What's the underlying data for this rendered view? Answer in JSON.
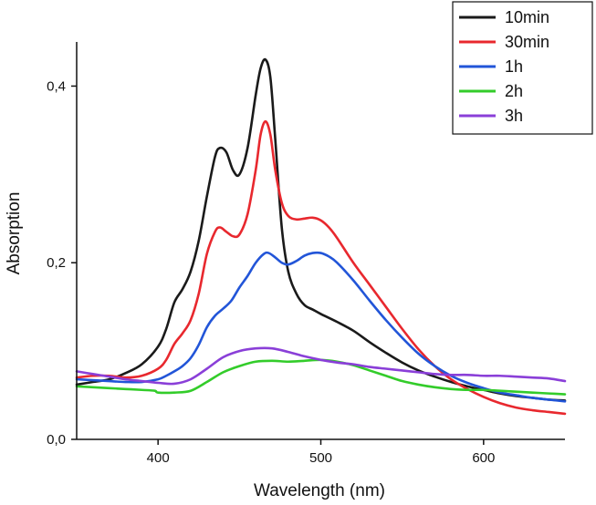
{
  "chart_data": {
    "type": "line",
    "title": "",
    "xlabel": "Wavelength (nm)",
    "ylabel": "Absorption",
    "xlim": [
      350,
      650
    ],
    "ylim": [
      0.0,
      0.45
    ],
    "x_ticks": [
      400,
      500,
      600
    ],
    "y_ticks": [
      0.0,
      0.2,
      0.4
    ],
    "x_tick_labels": [
      "400",
      "500",
      "600"
    ],
    "y_tick_labels": [
      "0,0",
      "0,2",
      "0,4"
    ],
    "grid": false,
    "legend_position": "top-right",
    "series": [
      {
        "name": "10min",
        "color": "#1a1a1a",
        "x": [
          350,
          360,
          370,
          380,
          390,
          400,
          405,
          410,
          415,
          420,
          425,
          430,
          435,
          438,
          442,
          446,
          450,
          455,
          460,
          463,
          466,
          469,
          472,
          476,
          480,
          485,
          490,
          495,
          500,
          510,
          520,
          530,
          540,
          550,
          560,
          570,
          580,
          590,
          600,
          610,
          620,
          630,
          640,
          650
        ],
        "y": [
          0.062,
          0.065,
          0.068,
          0.075,
          0.085,
          0.105,
          0.125,
          0.155,
          0.17,
          0.19,
          0.225,
          0.275,
          0.32,
          0.33,
          0.325,
          0.305,
          0.3,
          0.33,
          0.39,
          0.42,
          0.43,
          0.41,
          0.34,
          0.24,
          0.19,
          0.165,
          0.152,
          0.147,
          0.142,
          0.133,
          0.123,
          0.11,
          0.098,
          0.087,
          0.078,
          0.071,
          0.065,
          0.06,
          0.056,
          0.052,
          0.049,
          0.047,
          0.045,
          0.044
        ]
      },
      {
        "name": "30min",
        "color": "#e8282e",
        "x": [
          350,
          360,
          370,
          380,
          390,
          400,
          405,
          410,
          415,
          420,
          425,
          430,
          435,
          438,
          442,
          446,
          450,
          455,
          460,
          463,
          466,
          469,
          472,
          476,
          480,
          485,
          490,
          495,
          500,
          505,
          510,
          520,
          530,
          540,
          550,
          560,
          570,
          580,
          590,
          600,
          610,
          620,
          630,
          640,
          650
        ],
        "y": [
          0.07,
          0.072,
          0.072,
          0.07,
          0.072,
          0.08,
          0.09,
          0.108,
          0.12,
          0.135,
          0.165,
          0.21,
          0.235,
          0.24,
          0.235,
          0.23,
          0.232,
          0.255,
          0.305,
          0.345,
          0.36,
          0.345,
          0.305,
          0.268,
          0.253,
          0.249,
          0.25,
          0.251,
          0.248,
          0.24,
          0.228,
          0.2,
          0.175,
          0.15,
          0.125,
          0.102,
          0.083,
          0.068,
          0.057,
          0.048,
          0.041,
          0.036,
          0.033,
          0.031,
          0.029
        ]
      },
      {
        "name": "1h",
        "color": "#2255d8",
        "x": [
          350,
          360,
          370,
          380,
          390,
          400,
          405,
          410,
          415,
          420,
          425,
          430,
          435,
          440,
          445,
          450,
          455,
          460,
          465,
          468,
          472,
          476,
          480,
          485,
          490,
          495,
          500,
          505,
          510,
          520,
          530,
          540,
          550,
          560,
          570,
          580,
          590,
          600,
          610,
          620,
          630,
          640,
          650
        ],
        "y": [
          0.068,
          0.067,
          0.066,
          0.065,
          0.065,
          0.068,
          0.072,
          0.077,
          0.083,
          0.092,
          0.107,
          0.127,
          0.14,
          0.148,
          0.157,
          0.172,
          0.185,
          0.2,
          0.21,
          0.211,
          0.206,
          0.2,
          0.198,
          0.202,
          0.208,
          0.211,
          0.211,
          0.207,
          0.2,
          0.18,
          0.157,
          0.135,
          0.115,
          0.097,
          0.083,
          0.072,
          0.064,
          0.058,
          0.053,
          0.05,
          0.047,
          0.045,
          0.043
        ]
      },
      {
        "name": "2h",
        "color": "#33cc2a",
        "x": [
          350,
          360,
          370,
          380,
          390,
          398,
          400,
          410,
          420,
          430,
          440,
          450,
          460,
          470,
          480,
          490,
          500,
          510,
          520,
          530,
          540,
          550,
          560,
          570,
          580,
          590,
          600,
          610,
          620,
          630,
          640,
          650
        ],
        "y": [
          0.06,
          0.059,
          0.058,
          0.057,
          0.056,
          0.055,
          0.053,
          0.053,
          0.055,
          0.065,
          0.076,
          0.083,
          0.088,
          0.089,
          0.088,
          0.089,
          0.09,
          0.088,
          0.084,
          0.078,
          0.072,
          0.066,
          0.062,
          0.059,
          0.057,
          0.056,
          0.056,
          0.055,
          0.054,
          0.053,
          0.052,
          0.051
        ]
      },
      {
        "name": "3h",
        "color": "#8a3fd8",
        "x": [
          350,
          360,
          370,
          380,
          390,
          400,
          410,
          420,
          430,
          440,
          450,
          460,
          470,
          480,
          490,
          500,
          510,
          520,
          530,
          540,
          550,
          560,
          570,
          580,
          590,
          600,
          610,
          620,
          630,
          640,
          650
        ],
        "y": [
          0.077,
          0.074,
          0.071,
          0.068,
          0.066,
          0.064,
          0.063,
          0.068,
          0.08,
          0.093,
          0.1,
          0.103,
          0.103,
          0.099,
          0.094,
          0.09,
          0.087,
          0.085,
          0.082,
          0.08,
          0.078,
          0.076,
          0.074,
          0.073,
          0.073,
          0.072,
          0.072,
          0.071,
          0.07,
          0.069,
          0.066
        ]
      }
    ]
  }
}
